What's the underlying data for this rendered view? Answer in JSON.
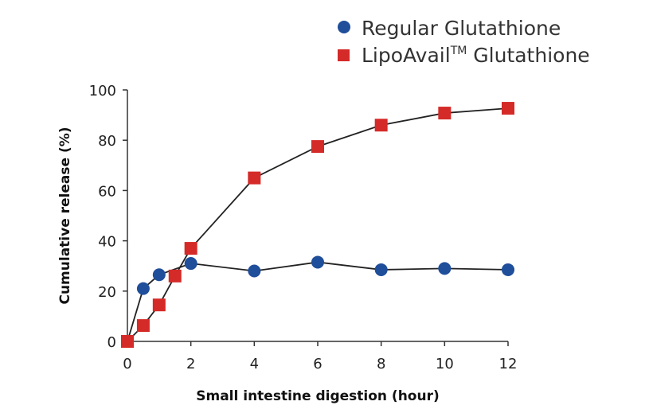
{
  "chart_data": {
    "type": "line",
    "title": "",
    "xlabel": "Small intestine digestion (hour)",
    "ylabel": "Cumulative release (%)",
    "xlim": [
      0,
      12
    ],
    "ylim": [
      0,
      100
    ],
    "xticks": [
      0,
      2,
      4,
      6,
      8,
      10,
      12
    ],
    "yticks": [
      0,
      20,
      40,
      60,
      80,
      100
    ],
    "legend_position": "top-right",
    "series": [
      {
        "name": "Regular Glutathione",
        "marker": "circle",
        "color": "#1f4e9a",
        "x": [
          0,
          0.5,
          1,
          2,
          4,
          6,
          8,
          10,
          12
        ],
        "y": [
          0,
          21,
          26.5,
          31,
          28,
          31.5,
          28.5,
          29,
          28.5
        ]
      },
      {
        "name": "LipoAvail™ Glutathione",
        "name_base": "LipoAvail",
        "name_sup": "TM",
        "name_rest": " Glutathione",
        "marker": "square",
        "color": "#d42a28",
        "x": [
          0,
          0.5,
          1,
          1.5,
          2,
          4,
          6,
          8,
          10,
          12
        ],
        "y": [
          0,
          6.3,
          14.5,
          26,
          37,
          65,
          77.5,
          86,
          90.8,
          92.7
        ]
      }
    ]
  }
}
